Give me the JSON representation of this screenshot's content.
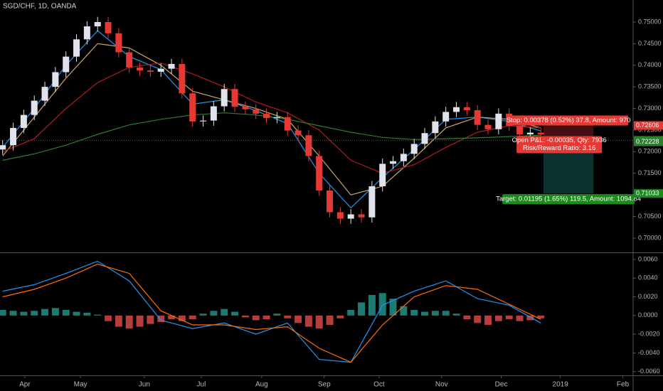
{
  "chart_data": [
    {
      "type": "candlestick",
      "title": "SGD/CHF, 1D, OANDA",
      "xlim": [
        0,
        240
      ],
      "xticks": [
        {
          "value": 9.4,
          "label": "Apr"
        },
        {
          "value": 30.5,
          "label": "May"
        },
        {
          "value": 54.7,
          "label": "Jun"
        },
        {
          "value": 76.3,
          "label": "Jul"
        },
        {
          "value": 99.2,
          "label": "Aug"
        },
        {
          "value": 122.9,
          "label": "Sep"
        },
        {
          "value": 143.7,
          "label": "Oct"
        },
        {
          "value": 167.4,
          "label": "Nov"
        },
        {
          "value": 190,
          "label": "Dec"
        },
        {
          "value": 212.4,
          "label": "2019"
        },
        {
          "value": 236.1,
          "label": "Feb"
        }
      ],
      "ylim": [
        0.6967,
        0.7551
      ],
      "yticks": [
        {
          "value": 0.75,
          "label": "0.75000"
        },
        {
          "value": 0.745,
          "label": "0.74500"
        },
        {
          "value": 0.74,
          "label": "0.74000"
        },
        {
          "value": 0.735,
          "label": "0.73500"
        },
        {
          "value": 0.73,
          "label": "0.73000"
        },
        {
          "value": 0.725,
          "label": "0.72500"
        },
        {
          "value": 0.72,
          "label": "0.72000"
        },
        {
          "value": 0.715,
          "label": "0.71500"
        },
        {
          "value": 0.705,
          "label": "0.70500"
        },
        {
          "value": 0.7,
          "label": "0.70000"
        }
      ],
      "up_color": "#e0e3eb",
      "down_color": "#e53935",
      "x": [
        1,
        5,
        9,
        13,
        17,
        21,
        25,
        29,
        33,
        37,
        41,
        45,
        49,
        53,
        57,
        61,
        65,
        69,
        73,
        77,
        81,
        85,
        89,
        93,
        97,
        101,
        105,
        109,
        113,
        117,
        121,
        125,
        129,
        133,
        137,
        141,
        145,
        149,
        153,
        157,
        161,
        165,
        169,
        173,
        177,
        181,
        185,
        189,
        193,
        197,
        201,
        205
      ],
      "open": [
        0.7205,
        0.7215,
        0.7255,
        0.7285,
        0.7318,
        0.735,
        0.7384,
        0.742,
        0.746,
        0.749,
        0.75,
        0.7474,
        0.743,
        0.7395,
        0.7388,
        0.7385,
        0.7392,
        0.7403,
        0.7335,
        0.727,
        0.7272,
        0.7305,
        0.7345,
        0.7304,
        0.7298,
        0.7288,
        0.7278,
        0.728,
        0.7249,
        0.7238,
        0.719,
        0.711,
        0.706,
        0.7045,
        0.7055,
        0.7048,
        0.712,
        0.7172,
        0.7178,
        0.7195,
        0.7218,
        0.7243,
        0.727,
        0.7292,
        0.7303,
        0.7296,
        0.7262,
        0.7252,
        0.7288,
        0.726,
        0.724,
        0.7244
      ],
      "high": [
        0.7227,
        0.7267,
        0.7297,
        0.733,
        0.7362,
        0.7396,
        0.7432,
        0.7472,
        0.7502,
        0.7512,
        0.7512,
        0.7486,
        0.7442,
        0.7407,
        0.74,
        0.7404,
        0.7415,
        0.7415,
        0.7347,
        0.7284,
        0.7317,
        0.7357,
        0.7357,
        0.7316,
        0.731,
        0.73,
        0.7292,
        0.7292,
        0.7261,
        0.725,
        0.7202,
        0.7122,
        0.7072,
        0.7067,
        0.7067,
        0.7132,
        0.7184,
        0.719,
        0.7207,
        0.723,
        0.7255,
        0.7282,
        0.7304,
        0.7315,
        0.7315,
        0.7308,
        0.7274,
        0.73,
        0.73,
        0.7272,
        0.7256,
        0.7256
      ],
      "low": [
        0.7193,
        0.7203,
        0.7243,
        0.7273,
        0.7306,
        0.7338,
        0.7372,
        0.7408,
        0.7448,
        0.7478,
        0.7462,
        0.7418,
        0.7383,
        0.7376,
        0.7373,
        0.7373,
        0.738,
        0.7323,
        0.7258,
        0.7258,
        0.726,
        0.7293,
        0.7292,
        0.7286,
        0.7276,
        0.7266,
        0.7266,
        0.7237,
        0.7226,
        0.7178,
        0.7098,
        0.7048,
        0.7033,
        0.7033,
        0.7036,
        0.7036,
        0.7108,
        0.716,
        0.7166,
        0.7183,
        0.7206,
        0.7231,
        0.7258,
        0.728,
        0.7284,
        0.725,
        0.724,
        0.724,
        0.7248,
        0.7228,
        0.7228,
        0.7228
      ],
      "close": [
        0.7215,
        0.7255,
        0.7285,
        0.7318,
        0.735,
        0.7384,
        0.742,
        0.746,
        0.749,
        0.75,
        0.7474,
        0.743,
        0.7395,
        0.7388,
        0.7385,
        0.7392,
        0.7403,
        0.7335,
        0.727,
        0.7272,
        0.7305,
        0.7345,
        0.7304,
        0.7298,
        0.7288,
        0.7278,
        0.728,
        0.7249,
        0.7238,
        0.719,
        0.711,
        0.706,
        0.7045,
        0.7055,
        0.7048,
        0.712,
        0.7172,
        0.7178,
        0.7195,
        0.7218,
        0.7243,
        0.727,
        0.7292,
        0.7303,
        0.7296,
        0.7262,
        0.7252,
        0.7288,
        0.726,
        0.724,
        0.7244,
        0.724
      ],
      "ma_x": [
        1,
        13,
        25,
        37,
        49,
        61,
        73,
        85,
        97,
        109,
        121,
        133,
        145,
        157,
        169,
        181,
        193,
        205
      ],
      "moving_averages": [
        {
          "color": "#2196f3",
          "values": [
            0.721,
            0.73,
            0.74,
            0.748,
            0.742,
            0.739,
            0.731,
            0.732,
            0.7295,
            0.7265,
            0.715,
            0.707,
            0.714,
            0.7205,
            0.7275,
            0.728,
            0.727,
            0.7248
          ]
        },
        {
          "color": "#c8a56a",
          "values": [
            0.719,
            0.728,
            0.737,
            0.745,
            0.744,
            0.74,
            0.734,
            0.732,
            0.73,
            0.7275,
            0.719,
            0.71,
            0.712,
            0.7185,
            0.7255,
            0.728,
            0.7275,
            0.7255
          ]
        },
        {
          "color": "#b71c1c",
          "values": [
            0.72,
            0.723,
            0.73,
            0.736,
            0.7395,
            0.7405,
            0.738,
            0.735,
            0.7315,
            0.729,
            0.725,
            0.718,
            0.715,
            0.717,
            0.721,
            0.7245,
            0.726,
            0.7255
          ]
        },
        {
          "color": "#2e7d32",
          "values": [
            0.718,
            0.7195,
            0.7215,
            0.724,
            0.7262,
            0.7275,
            0.7285,
            0.729,
            0.7285,
            0.7275,
            0.726,
            0.7245,
            0.7233,
            0.7228,
            0.723,
            0.7232,
            0.7235,
            0.7238
          ]
        }
      ],
      "current_price": 0.72263,
      "position": {
        "x_range": [
          206,
          225
        ],
        "entry": 0.72228,
        "stop": 0.72606,
        "target": 0.71033,
        "stop_label": "Stop: 0.00378 (0.52%) 37.8, Amount: 970",
        "pnl_label": "Open P&L: -0.00035, Qty: 7936",
        "rr_label": "Risk/Reward Ratio: 3.16",
        "target_label": "Target: 0.01195 (1.65%) 119.5, Amount: 1094.84"
      }
    },
    {
      "type": "macd",
      "ylim": [
        -0.0064,
        0.0066
      ],
      "yticks": [
        {
          "value": 0.006,
          "label": "0.0060"
        },
        {
          "value": 0.004,
          "label": "0.0040"
        },
        {
          "value": 0.002,
          "label": "0.0020"
        },
        {
          "value": 0,
          "label": "0.0000"
        },
        {
          "value": -0.002,
          "label": "-0.0020"
        },
        {
          "value": -0.004,
          "label": "-0.0040"
        },
        {
          "value": -0.006,
          "label": "-0.0060"
        }
      ],
      "x": [
        1,
        13,
        25,
        37,
        49,
        61,
        73,
        85,
        97,
        109,
        121,
        133,
        145,
        157,
        169,
        181,
        193,
        205
      ],
      "macd": {
        "color": "#2196f3",
        "values": [
          0.0026,
          0.0033,
          0.0045,
          0.0058,
          0.0037,
          -0.0005,
          -0.0014,
          -0.0008,
          -0.002,
          -0.0008,
          -0.0047,
          -0.005,
          0.0011,
          0.0026,
          0.0037,
          0.0018,
          0.0011,
          -0.0008
        ]
      },
      "signal": {
        "color": "#ff6d00",
        "values": [
          0.002,
          0.0028,
          0.004,
          0.0055,
          0.0045,
          0.0005,
          -0.001,
          -0.001,
          -0.0015,
          -0.0012,
          -0.0035,
          -0.005,
          -0.001,
          0.002,
          0.0032,
          0.0028,
          0.0012,
          -0.0004
        ]
      },
      "hist_x": [
        1,
        5,
        9,
        13,
        17,
        21,
        25,
        29,
        33,
        37,
        41,
        45,
        49,
        53,
        57,
        61,
        65,
        69,
        73,
        77,
        81,
        85,
        89,
        93,
        97,
        101,
        105,
        109,
        113,
        117,
        121,
        125,
        129,
        133,
        137,
        141,
        145,
        149,
        153,
        157,
        161,
        165,
        169,
        173,
        177,
        181,
        185,
        189,
        193,
        197,
        201,
        205
      ],
      "histogram": [
        0.0006,
        0.0005,
        0.0004,
        0.0005,
        0.0007,
        0.0008,
        0.0006,
        0.0004,
        0.0003,
        0.0001,
        -0.0006,
        -0.0012,
        -0.0014,
        -0.0012,
        -0.0009,
        -0.0007,
        -0.0004,
        -0.0006,
        -0.0004,
        0.0002,
        0.0005,
        0.0007,
        0.0004,
        -0.0002,
        -0.0005,
        -0.0004,
        0.0002,
        -0.0003,
        -0.0008,
        -0.0012,
        -0.0014,
        -0.001,
        -0.0003,
        0.0006,
        0.0014,
        0.0022,
        0.0024,
        0.0018,
        0.001,
        0.0006,
        0.0004,
        0.0005,
        0.0005,
        0.0002,
        -0.0004,
        -0.0008,
        -0.001,
        -0.0006,
        -0.0004,
        -0.0006,
        -0.0005,
        -0.0003
      ],
      "pos_color": "#26a69a",
      "neg_color": "#ef5350"
    }
  ]
}
